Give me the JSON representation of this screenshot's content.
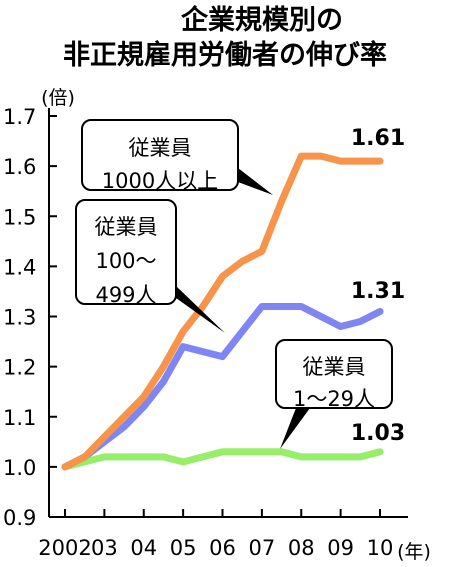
{
  "title_lines": [
    "企業規模別の",
    "非正規雇用労働者の伸び率"
  ],
  "chart_data": {
    "type": "line",
    "title": "企業規模別の非正規雇用労働者の伸び率",
    "y_unit": "(倍)",
    "x_unit": "(年)",
    "x_tick_labels": [
      "2002",
      "03",
      "04",
      "05",
      "06",
      "07",
      "08",
      "09",
      "10"
    ],
    "y_tick_labels": [
      "0.9",
      "1.0",
      "1.1",
      "1.2",
      "1.3",
      "1.4",
      "1.5",
      "1.6",
      "1.7"
    ],
    "ylim": [
      0.9,
      1.7
    ],
    "grid": false,
    "x": [
      2002,
      2002.5,
      2003,
      2003.5,
      2004,
      2004.5,
      2005,
      2005.5,
      2006,
      2006.5,
      2007,
      2007.5,
      2008,
      2008.5,
      2009,
      2009.5,
      2010
    ],
    "series": [
      {
        "name": "従業員1000人以上",
        "callout_lines": [
          "従業員",
          "1000人以上"
        ],
        "end_label": "1.61",
        "color": "#f7944a",
        "values": [
          1.0,
          1.02,
          1.06,
          1.1,
          1.14,
          1.2,
          1.27,
          1.32,
          1.38,
          1.41,
          1.43,
          1.53,
          1.62,
          1.62,
          1.61,
          1.61,
          1.61
        ]
      },
      {
        "name": "従業員100〜499人",
        "callout_lines": [
          "従業員",
          "100〜",
          "499人"
        ],
        "end_label": "1.31",
        "color": "#7f86f3",
        "values": [
          1.0,
          1.02,
          1.05,
          1.08,
          1.12,
          1.17,
          1.24,
          1.23,
          1.22,
          1.27,
          1.32,
          1.32,
          1.32,
          1.3,
          1.28,
          1.29,
          1.31
        ]
      },
      {
        "name": "従業員1〜29人",
        "callout_lines": [
          "従業員",
          "1〜29人"
        ],
        "end_label": "1.03",
        "color": "#97ee69",
        "values": [
          1.0,
          1.01,
          1.02,
          1.02,
          1.02,
          1.02,
          1.01,
          1.02,
          1.03,
          1.03,
          1.03,
          1.03,
          1.02,
          1.02,
          1.02,
          1.02,
          1.03
        ]
      }
    ]
  }
}
